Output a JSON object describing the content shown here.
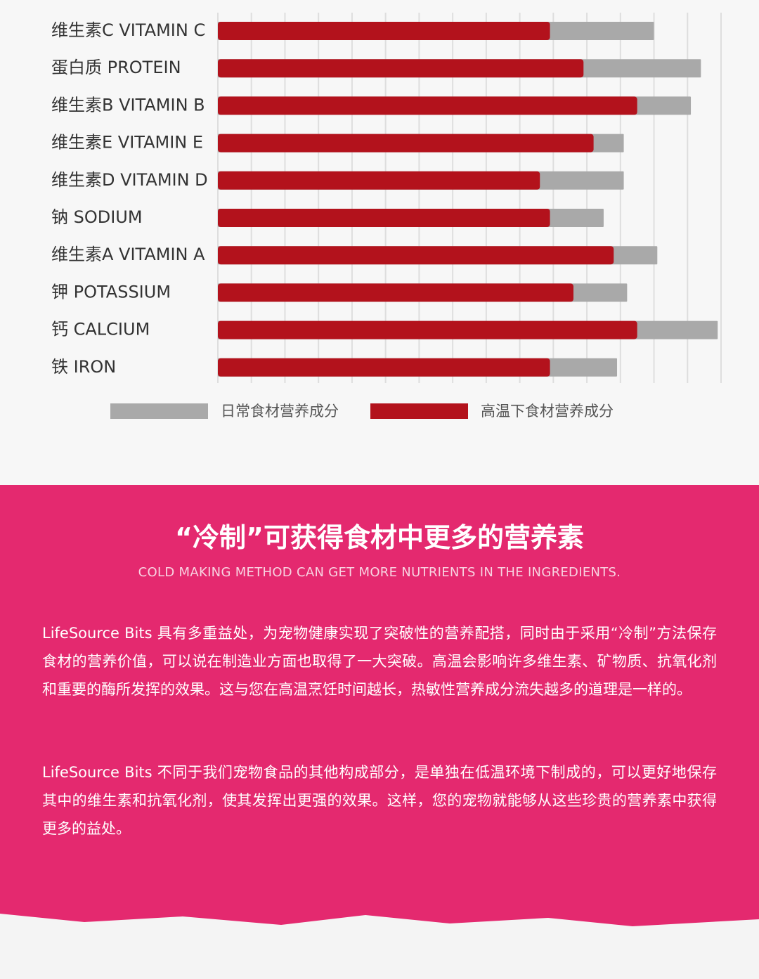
{
  "chart_data": {
    "type": "overlap-bar",
    "orientation": "horizontal",
    "categories": [
      "维生素C VITAMIN C",
      "蛋白质 PROTEIN",
      "维生素B VITAMIN B",
      "维生素E VITAMIN E",
      "维生素D VITAMIN D",
      "钠 SODIUM",
      "维生素A VITAMIN A",
      "钾 POTASSIUM",
      "钙 CALCIUM",
      "铁 IRON"
    ],
    "series": [
      {
        "name": "日常食材营养成分",
        "color": "#a9a9a9",
        "values": [
          13.0,
          14.4,
          14.1,
          12.1,
          12.1,
          11.5,
          13.1,
          12.2,
          14.9,
          11.9
        ]
      },
      {
        "name": "高温下食材营养成分",
        "color": "#b3121c",
        "values": [
          9.9,
          10.9,
          12.5,
          11.2,
          9.6,
          9.9,
          11.8,
          10.6,
          12.5,
          9.9
        ]
      }
    ],
    "xlim": [
      0,
      15
    ],
    "xticks": [
      0,
      1,
      2,
      3,
      4,
      5,
      6,
      7,
      8,
      9,
      10,
      11,
      12,
      13,
      14,
      15
    ],
    "grid": true
  },
  "section": {
    "title": "“冷制”可获得食材中更多的营养素",
    "subtitle": "COLD MAKING METHOD CAN GET MORE NUTRIENTS IN THE INGREDIENTS.",
    "paragraphs": [
      "LifeSource Bits 具有多重益处，为宠物健康实现了突破性的营养配搭，同时由于采用“冷制”方法保存食材的营养价值，可以说在制造业方面也取得了一大突破。高温会影响许多维生素、矿物质、抗氧化剂和重要的酶所发挥的效果。这与您在高温烹饪时间越长，热敏性营养成分流失越多的道理是一样的。",
      "LifeSource Bits 不同于我们宠物食品的其他构成部分，是单独在低温环境下制成的，可以更好地保存其中的维生素和抗氧化剂，使其发挥出更强的效果。这样，您的宠物就能够从这些珍贵的营养素中获得更多的益处。"
    ]
  }
}
